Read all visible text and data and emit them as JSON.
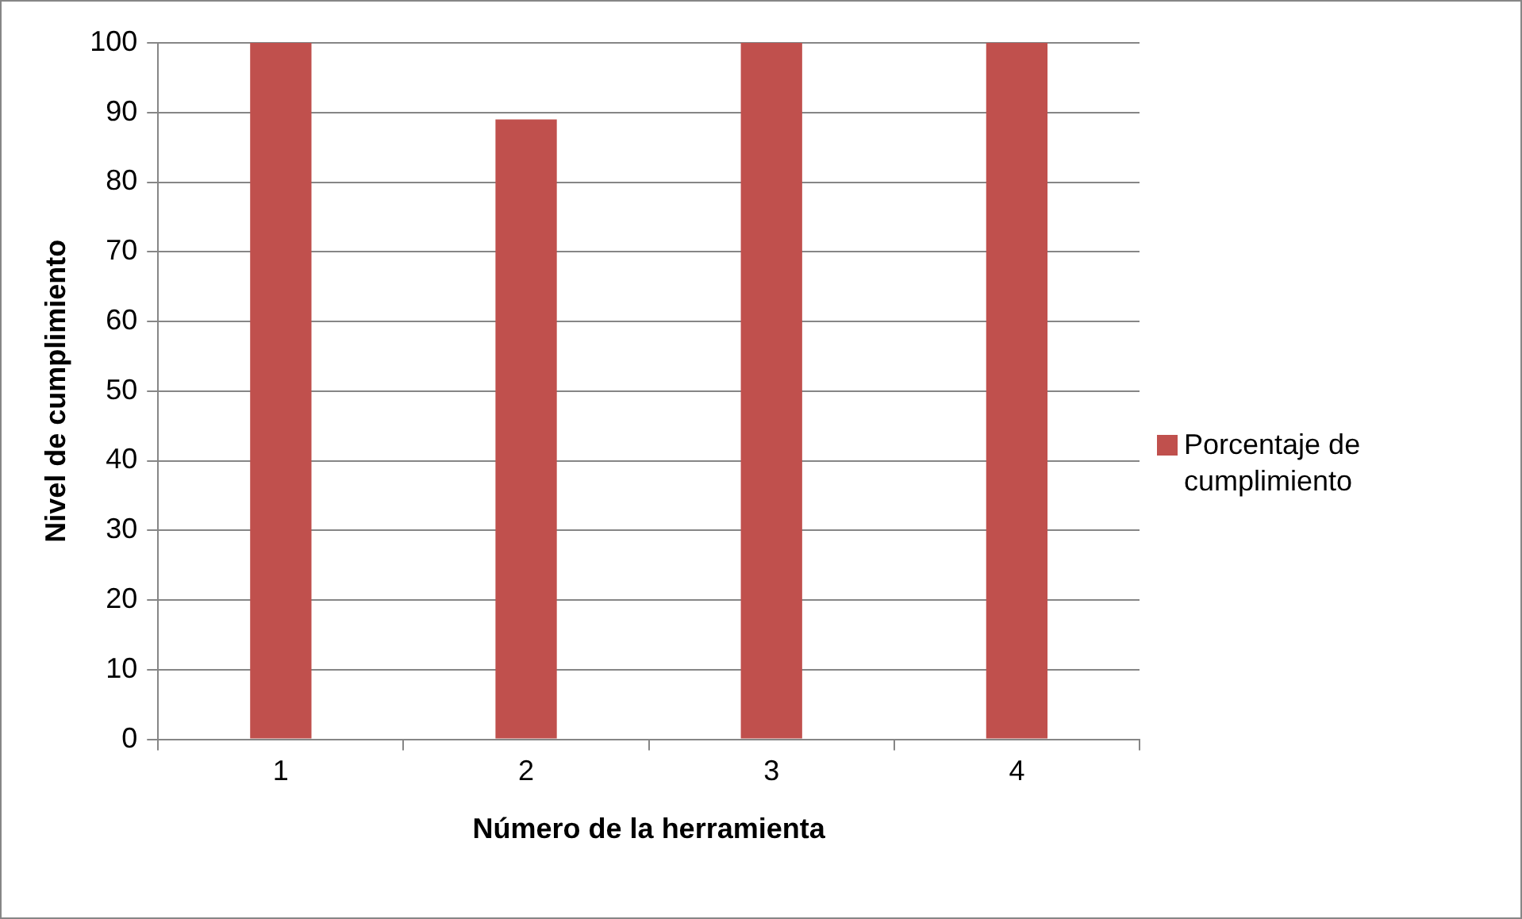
{
  "chart_data": {
    "type": "bar",
    "xlabel": "Número de la herramienta",
    "ylabel": "Nivel de cumplimiento",
    "categories": [
      "1",
      "2",
      "3",
      "4"
    ],
    "series": [
      {
        "name": "Porcentaje de cumplimiento",
        "color": "#c0504d",
        "values": [
          100,
          89,
          100,
          100
        ]
      }
    ],
    "ylim": [
      0,
      100
    ],
    "yticks": [
      0,
      10,
      20,
      30,
      40,
      50,
      60,
      70,
      80,
      90,
      100
    ],
    "grid": "y",
    "legend": "right"
  }
}
